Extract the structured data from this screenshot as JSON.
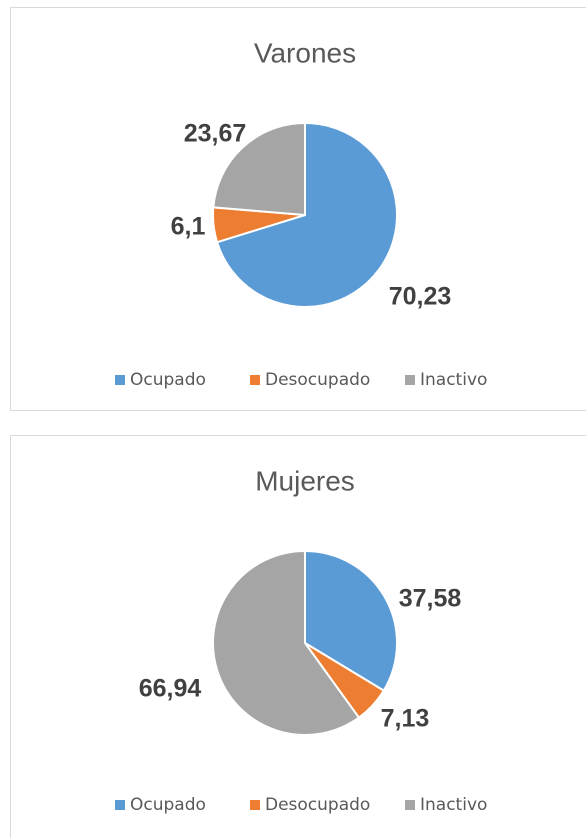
{
  "chart_data": [
    {
      "type": "pie",
      "title": "Varones",
      "categories": [
        "Ocupado",
        "Desocupado",
        "Inactivo"
      ],
      "values": [
        70.23,
        6.1,
        23.67
      ],
      "value_labels": [
        "70,23",
        "6,1",
        "23,67"
      ],
      "colors": [
        "#5b9bd5",
        "#ed7d31",
        "#a5a5a5"
      ],
      "legend": "bottom"
    },
    {
      "type": "pie",
      "title": "Mujeres",
      "categories": [
        "Ocupado",
        "Desocupado",
        "Inactivo"
      ],
      "values": [
        37.58,
        7.13,
        66.94
      ],
      "value_labels": [
        "37,58",
        "7,13",
        "66,94"
      ],
      "colors": [
        "#5b9bd5",
        "#ed7d31",
        "#a5a5a5"
      ],
      "legend": "bottom"
    }
  ]
}
